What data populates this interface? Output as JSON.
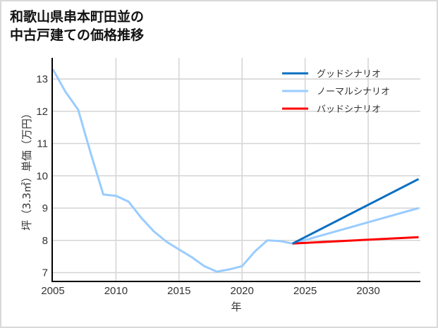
{
  "title": {
    "line1": "和歌山県串本町田並の",
    "line2": "中古戸建ての価格推移"
  },
  "colors": {
    "good": "#0a6fc2",
    "normal": "#99ccff",
    "bad": "#ff0000",
    "grid": "#d4d4d4",
    "axis": "#000000"
  },
  "chart_data": {
    "type": "line",
    "title": "和歌山県串本町田並の中古戸建ての価格推移",
    "xlabel": "年",
    "ylabel": "坪（3.3㎡）単価（万円）",
    "xlim": [
      2005,
      2034
    ],
    "ylim": [
      6.7,
      13.6
    ],
    "x_ticks": [
      2005,
      2010,
      2015,
      2020,
      2025,
      2030
    ],
    "y_ticks": [
      7,
      8,
      9,
      10,
      11,
      12,
      13
    ],
    "grid": true,
    "legend_position": "upper right",
    "series": [
      {
        "name": "グッドシナリオ",
        "color": "#0a6fc2",
        "x": [
          2024,
          2034
        ],
        "values": [
          7.9,
          9.9
        ]
      },
      {
        "name": "ノーマルシナリオ",
        "color": "#99ccff",
        "x": [
          2005,
          2006,
          2007,
          2008,
          2009,
          2010,
          2011,
          2012,
          2013,
          2014,
          2015,
          2016,
          2017,
          2018,
          2019,
          2020,
          2021,
          2022,
          2023,
          2024,
          2034
        ],
        "values": [
          13.3,
          12.6,
          12.05,
          10.7,
          9.42,
          9.38,
          9.2,
          8.7,
          8.28,
          7.96,
          7.72,
          7.48,
          7.2,
          7.03,
          7.1,
          7.2,
          7.65,
          8.0,
          7.98,
          7.9,
          9.0
        ]
      },
      {
        "name": "バッドシナリオ",
        "color": "#ff0000",
        "x": [
          2024,
          2034
        ],
        "values": [
          7.9,
          8.1
        ]
      }
    ]
  },
  "legend": {
    "items": [
      {
        "label": "グッドシナリオ"
      },
      {
        "label": "ノーマルシナリオ"
      },
      {
        "label": "バッドシナリオ"
      }
    ]
  }
}
